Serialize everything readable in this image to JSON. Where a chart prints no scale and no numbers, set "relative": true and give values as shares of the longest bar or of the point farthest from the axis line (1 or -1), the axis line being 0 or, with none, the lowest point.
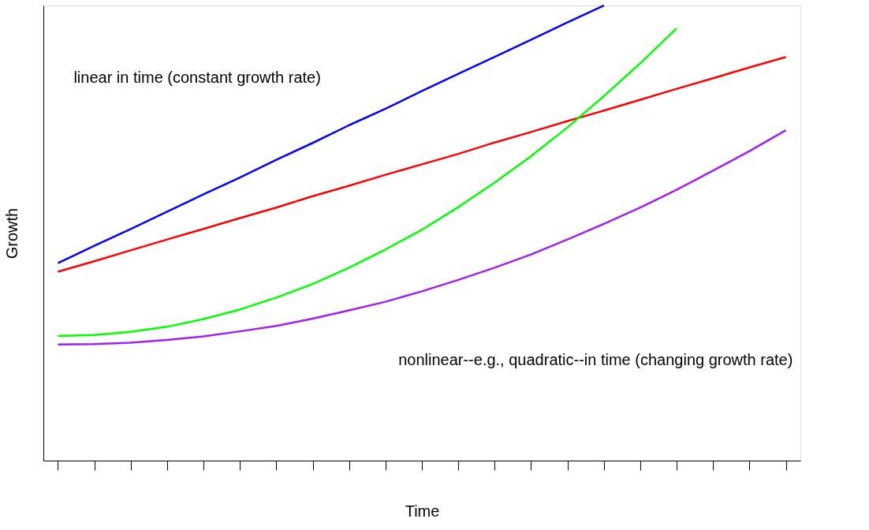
{
  "chart_data": {
    "type": "line",
    "relative": true,
    "xlabel": "Time",
    "ylabel": "Growth",
    "categories": [
      null,
      null,
      null,
      null,
      null,
      null,
      null,
      null,
      null,
      null,
      null,
      null,
      null,
      null,
      null,
      null,
      null,
      null,
      null,
      null,
      null
    ],
    "series": [
      {
        "color": "#0000ff",
        "values": [
          0.434,
          0.472,
          0.509,
          0.547,
          0.585,
          0.622,
          0.661,
          0.698,
          0.737,
          0.773,
          0.812,
          0.85,
          0.887,
          0.925,
          0.963,
          1.0,
          null,
          null,
          null,
          null,
          null
        ]
      },
      {
        "color": "#ff0000",
        "values": [
          0.415,
          0.438,
          0.462,
          0.486,
          0.509,
          0.533,
          0.556,
          0.581,
          0.604,
          0.628,
          0.651,
          0.674,
          0.699,
          0.722,
          0.746,
          0.769,
          0.793,
          0.817,
          0.84,
          0.864,
          0.887
        ]
      },
      {
        "color": "#00ff00",
        "values": [
          0.274,
          0.276,
          0.283,
          0.294,
          0.311,
          0.332,
          0.358,
          0.388,
          0.424,
          0.464,
          0.507,
          0.557,
          0.611,
          0.669,
          0.732,
          0.801,
          0.873,
          0.95,
          null,
          null,
          null
        ]
      },
      {
        "color": "#a020f0",
        "values": [
          0.255,
          0.256,
          0.259,
          0.265,
          0.273,
          0.284,
          0.296,
          0.312,
          0.33,
          0.349,
          0.372,
          0.397,
          0.424,
          0.453,
          0.486,
          0.52,
          0.556,
          0.595,
          0.637,
          0.68,
          0.726
        ]
      }
    ],
    "annotations": [
      "linear in time (constant growth rate)",
      "nonlinear--e.g., quadratic--in time (changing growth rate)"
    ],
    "grid": false,
    "legend": false,
    "line_style": "solid",
    "marker": "none"
  }
}
